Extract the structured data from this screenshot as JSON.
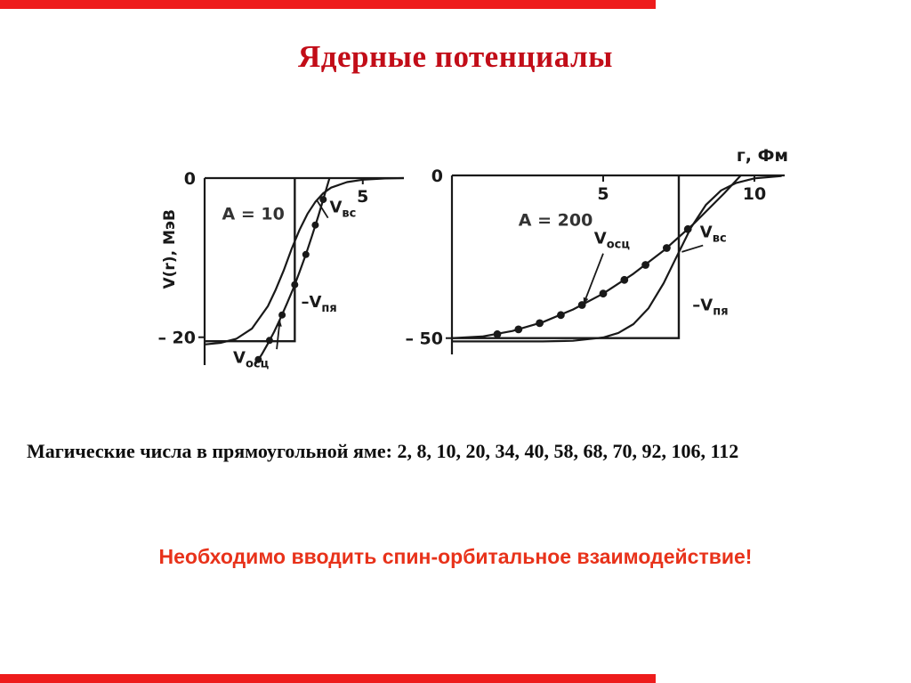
{
  "slide": {
    "title": "Ядерные потенциалы",
    "magic_numbers_text": "Магические числа в прямоугольной яме: 2, 8, 10, 20, 34, 40, 58, 68, 70, 92, 106, 112",
    "magic_numbers": [
      2,
      8,
      10,
      20,
      34,
      40,
      58,
      68,
      70,
      92,
      106,
      112
    ],
    "conclusion_text": "Необходимо вводить спин-орбитальное взаимодействие!",
    "colors": {
      "bar": "#ee1c1c",
      "title": "#c20d18",
      "conclusion": "#e8321a",
      "ink": "#191919"
    }
  },
  "chart_data": [
    {
      "type": "line",
      "title": "A = 10",
      "title_pos": [
        0.55,
        -5.2
      ],
      "xlabel": "",
      "ylabel": "V(r), МэВ",
      "xlim": [
        0,
        6.3
      ],
      "ylim": [
        -23.5,
        0
      ],
      "grid": false,
      "legend": "none",
      "x_ticks": [
        {
          "value": 5,
          "label": "5"
        }
      ],
      "y_ticks": [
        {
          "value": 0,
          "label": "0"
        },
        {
          "value": -20,
          "label": "– 20"
        }
      ],
      "well": {
        "name": "Vпя (прямоугольная яма)",
        "depth": -20.5,
        "radius": 2.85
      },
      "series": [
        {
          "id": "woods-saxon",
          "name": "Vвс",
          "points": [
            [
              0,
              -20.9
            ],
            [
              0.5,
              -20.7
            ],
            [
              1,
              -20.2
            ],
            [
              1.5,
              -18.9
            ],
            [
              2,
              -16.1
            ],
            [
              2.25,
              -14
            ],
            [
              2.5,
              -11.6
            ],
            [
              2.75,
              -8.9
            ],
            [
              3,
              -6.5
            ],
            [
              3.25,
              -4.5
            ],
            [
              3.5,
              -3
            ],
            [
              3.75,
              -1.9
            ],
            [
              4,
              -1.2
            ],
            [
              4.5,
              -0.5
            ],
            [
              5,
              -0.2
            ],
            [
              5.7,
              -0.05
            ],
            [
              6.3,
              0
            ]
          ]
        },
        {
          "id": "oscillator",
          "name": "Vосц",
          "marker_r": 4,
          "points": [
            [
              1.6,
              -23.4
            ],
            [
              1.8,
              -22.2
            ],
            [
              2,
              -20.8
            ],
            [
              2.2,
              -19.3
            ],
            [
              2.4,
              -17.6
            ],
            [
              2.6,
              -15.8
            ],
            [
              2.8,
              -13.9
            ],
            [
              3,
              -11.8
            ],
            [
              3.2,
              -9.6
            ],
            [
              3.4,
              -7.2
            ],
            [
              3.6,
              -4.7
            ],
            [
              3.8,
              -2
            ],
            [
              3.95,
              0
            ]
          ],
          "markers": [
            [
              1.7,
              -22.8
            ],
            [
              2.05,
              -20.4
            ],
            [
              2.45,
              -17.2
            ],
            [
              2.85,
              -13.4
            ],
            [
              3.2,
              -9.6
            ],
            [
              3.5,
              -5.9
            ],
            [
              3.75,
              -2.7
            ]
          ]
        }
      ],
      "annotations": [
        {
          "main": "V",
          "sub": "вс",
          "x": 3.95,
          "y": -4.3,
          "leader_from": [
            3.9,
            -5
          ],
          "leader_to": [
            3.55,
            -2.8
          ]
        },
        {
          "main": "–V",
          "sub": "пя",
          "x": 3.05,
          "y": -16.2
        },
        {
          "main": "V",
          "sub": "осц",
          "x": 0.9,
          "y": -23.2,
          "leader_from": [
            2.28,
            -21.5
          ],
          "leader_to": [
            2.38,
            -17.8
          ],
          "arrow": true
        }
      ]
    },
    {
      "type": "line",
      "title": "A = 200",
      "title_pos": [
        2.2,
        -15.5
      ],
      "xlabel": "г, Фм",
      "ylabel": "",
      "xlim": [
        0,
        11
      ],
      "ylim": [
        -55,
        0
      ],
      "grid": false,
      "legend": "none",
      "x_ticks": [
        {
          "value": 5,
          "label": "5"
        },
        {
          "value": 10,
          "label": "10"
        }
      ],
      "y_ticks": [
        {
          "value": 0,
          "label": "0"
        },
        {
          "value": -50,
          "label": "– 50"
        }
      ],
      "well": {
        "name": "Vпя (прямоугольная яма)",
        "depth": -50,
        "radius": 7.5
      },
      "series": [
        {
          "id": "woods-saxon",
          "name": "Vвс",
          "points": [
            [
              0,
              -51
            ],
            [
              3,
              -51
            ],
            [
              4,
              -50.8
            ],
            [
              5,
              -49.8
            ],
            [
              5.5,
              -48.4
            ],
            [
              6,
              -45.7
            ],
            [
              6.5,
              -40.8
            ],
            [
              7,
              -33.1
            ],
            [
              7.4,
              -25.5
            ],
            [
              7.9,
              -16.1
            ],
            [
              8.4,
              -9
            ],
            [
              8.9,
              -4.6
            ],
            [
              9.4,
              -2.3
            ],
            [
              10,
              -0.9
            ],
            [
              10.9,
              -0.2
            ]
          ]
        },
        {
          "id": "oscillator",
          "name": "Vосц",
          "marker_r": 4.4,
          "points": [
            [
              0,
              -50
            ],
            [
              1,
              -49.5
            ],
            [
              2,
              -47.8
            ],
            [
              3,
              -45.1
            ],
            [
              4,
              -41.2
            ],
            [
              5,
              -36.3
            ],
            [
              6,
              -30.2
            ],
            [
              7,
              -23.1
            ],
            [
              8,
              -14.8
            ],
            [
              9,
              -5.5
            ],
            [
              9.55,
              0
            ]
          ],
          "markers": [
            [
              1.5,
              -48.8
            ],
            [
              2.2,
              -47.3
            ],
            [
              2.9,
              -45.4
            ],
            [
              3.6,
              -42.9
            ],
            [
              4.3,
              -39.8
            ],
            [
              5,
              -36.3
            ],
            [
              5.7,
              -32.1
            ],
            [
              6.4,
              -27.5
            ],
            [
              7.1,
              -22.3
            ],
            [
              7.8,
              -16.5
            ]
          ]
        }
      ],
      "annotations": [
        {
          "main": "V",
          "sub": "осц",
          "x": 4.7,
          "y": -21,
          "leader_from": [
            5,
            -24
          ],
          "leader_to": [
            4.35,
            -39.6
          ],
          "arrow": true
        },
        {
          "main": "V",
          "sub": "вс",
          "x": 8.2,
          "y": -19,
          "leader_from": [
            8.3,
            -21.5
          ],
          "leader_to": [
            7.6,
            -23.5
          ]
        },
        {
          "main": "–V",
          "sub": "пя",
          "x": 7.95,
          "y": -41.5
        }
      ]
    }
  ]
}
